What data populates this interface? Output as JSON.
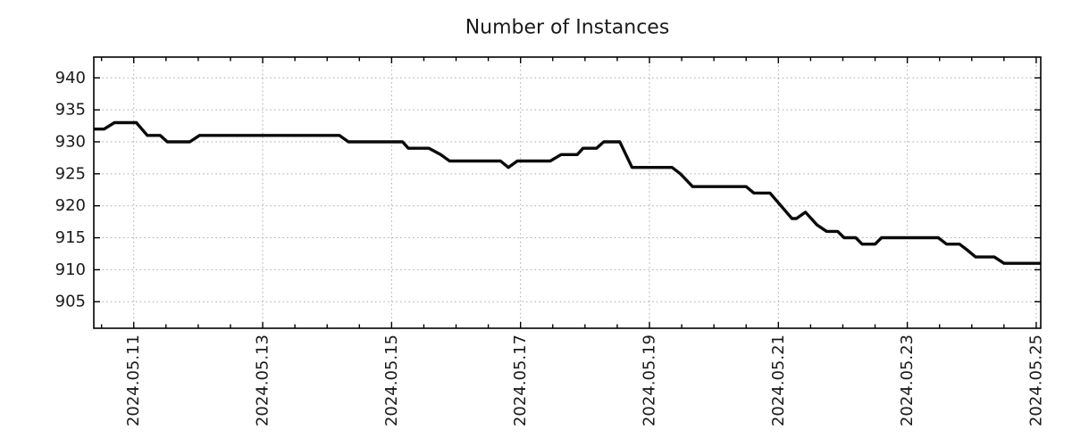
{
  "chart_data": {
    "type": "line",
    "title": "Number of Instances",
    "legend": "none",
    "grid": true,
    "x_axis": {
      "label": "",
      "domain_days": [
        10.38,
        25.07
      ],
      "major_tick_days": [
        11,
        13,
        15,
        17,
        19,
        21,
        23,
        25
      ],
      "tick_labels": [
        "2024.05.11",
        "2024.05.13",
        "2024.05.15",
        "2024.05.17",
        "2024.05.19",
        "2024.05.21",
        "2024.05.23",
        "2024.05.25"
      ],
      "minor_tick_step_days": 0.5,
      "tick_label_rotation_deg": -90
    },
    "y_axis": {
      "label": "",
      "domain": [
        900.85,
        943.25
      ],
      "ticks": [
        905,
        910,
        915,
        920,
        925,
        930,
        935,
        940
      ],
      "tick_labels": [
        "905",
        "910",
        "915",
        "920",
        "925",
        "930",
        "935",
        "940"
      ]
    },
    "series": [
      {
        "name": "instances",
        "points": [
          [
            10.38,
            932
          ],
          [
            10.54,
            932
          ],
          [
            10.7,
            933
          ],
          [
            11.04,
            933
          ],
          [
            11.21,
            931
          ],
          [
            11.41,
            931
          ],
          [
            11.52,
            930
          ],
          [
            11.87,
            930
          ],
          [
            12.02,
            931
          ],
          [
            14.19,
            931
          ],
          [
            14.33,
            930
          ],
          [
            15.17,
            930
          ],
          [
            15.26,
            929
          ],
          [
            15.58,
            929
          ],
          [
            15.76,
            928
          ],
          [
            15.9,
            927
          ],
          [
            16.69,
            927
          ],
          [
            16.81,
            926
          ],
          [
            16.95,
            927
          ],
          [
            17.46,
            927
          ],
          [
            17.63,
            928
          ],
          [
            17.88,
            928
          ],
          [
            17.97,
            929
          ],
          [
            18.18,
            929
          ],
          [
            18.29,
            930
          ],
          [
            18.54,
            930
          ],
          [
            18.73,
            926
          ],
          [
            19.35,
            926
          ],
          [
            19.48,
            925
          ],
          [
            19.67,
            923
          ],
          [
            20.5,
            923
          ],
          [
            20.62,
            922
          ],
          [
            20.87,
            922
          ],
          [
            21.04,
            920
          ],
          [
            21.21,
            918
          ],
          [
            21.28,
            918
          ],
          [
            21.42,
            919
          ],
          [
            21.6,
            917
          ],
          [
            21.75,
            916
          ],
          [
            21.92,
            916
          ],
          [
            22.02,
            915
          ],
          [
            22.2,
            915
          ],
          [
            22.3,
            914
          ],
          [
            22.5,
            914
          ],
          [
            22.6,
            915
          ],
          [
            23.48,
            915
          ],
          [
            23.61,
            914
          ],
          [
            23.81,
            914
          ],
          [
            23.94,
            913
          ],
          [
            24.06,
            912
          ],
          [
            24.35,
            912
          ],
          [
            24.5,
            911
          ],
          [
            25.07,
            911
          ]
        ]
      }
    ],
    "colors": {
      "line": "#0a0a0a",
      "grid": "#a8a8a8",
      "axis": "#000000",
      "text": "#1a1a1a",
      "background": "#ffffff"
    }
  }
}
